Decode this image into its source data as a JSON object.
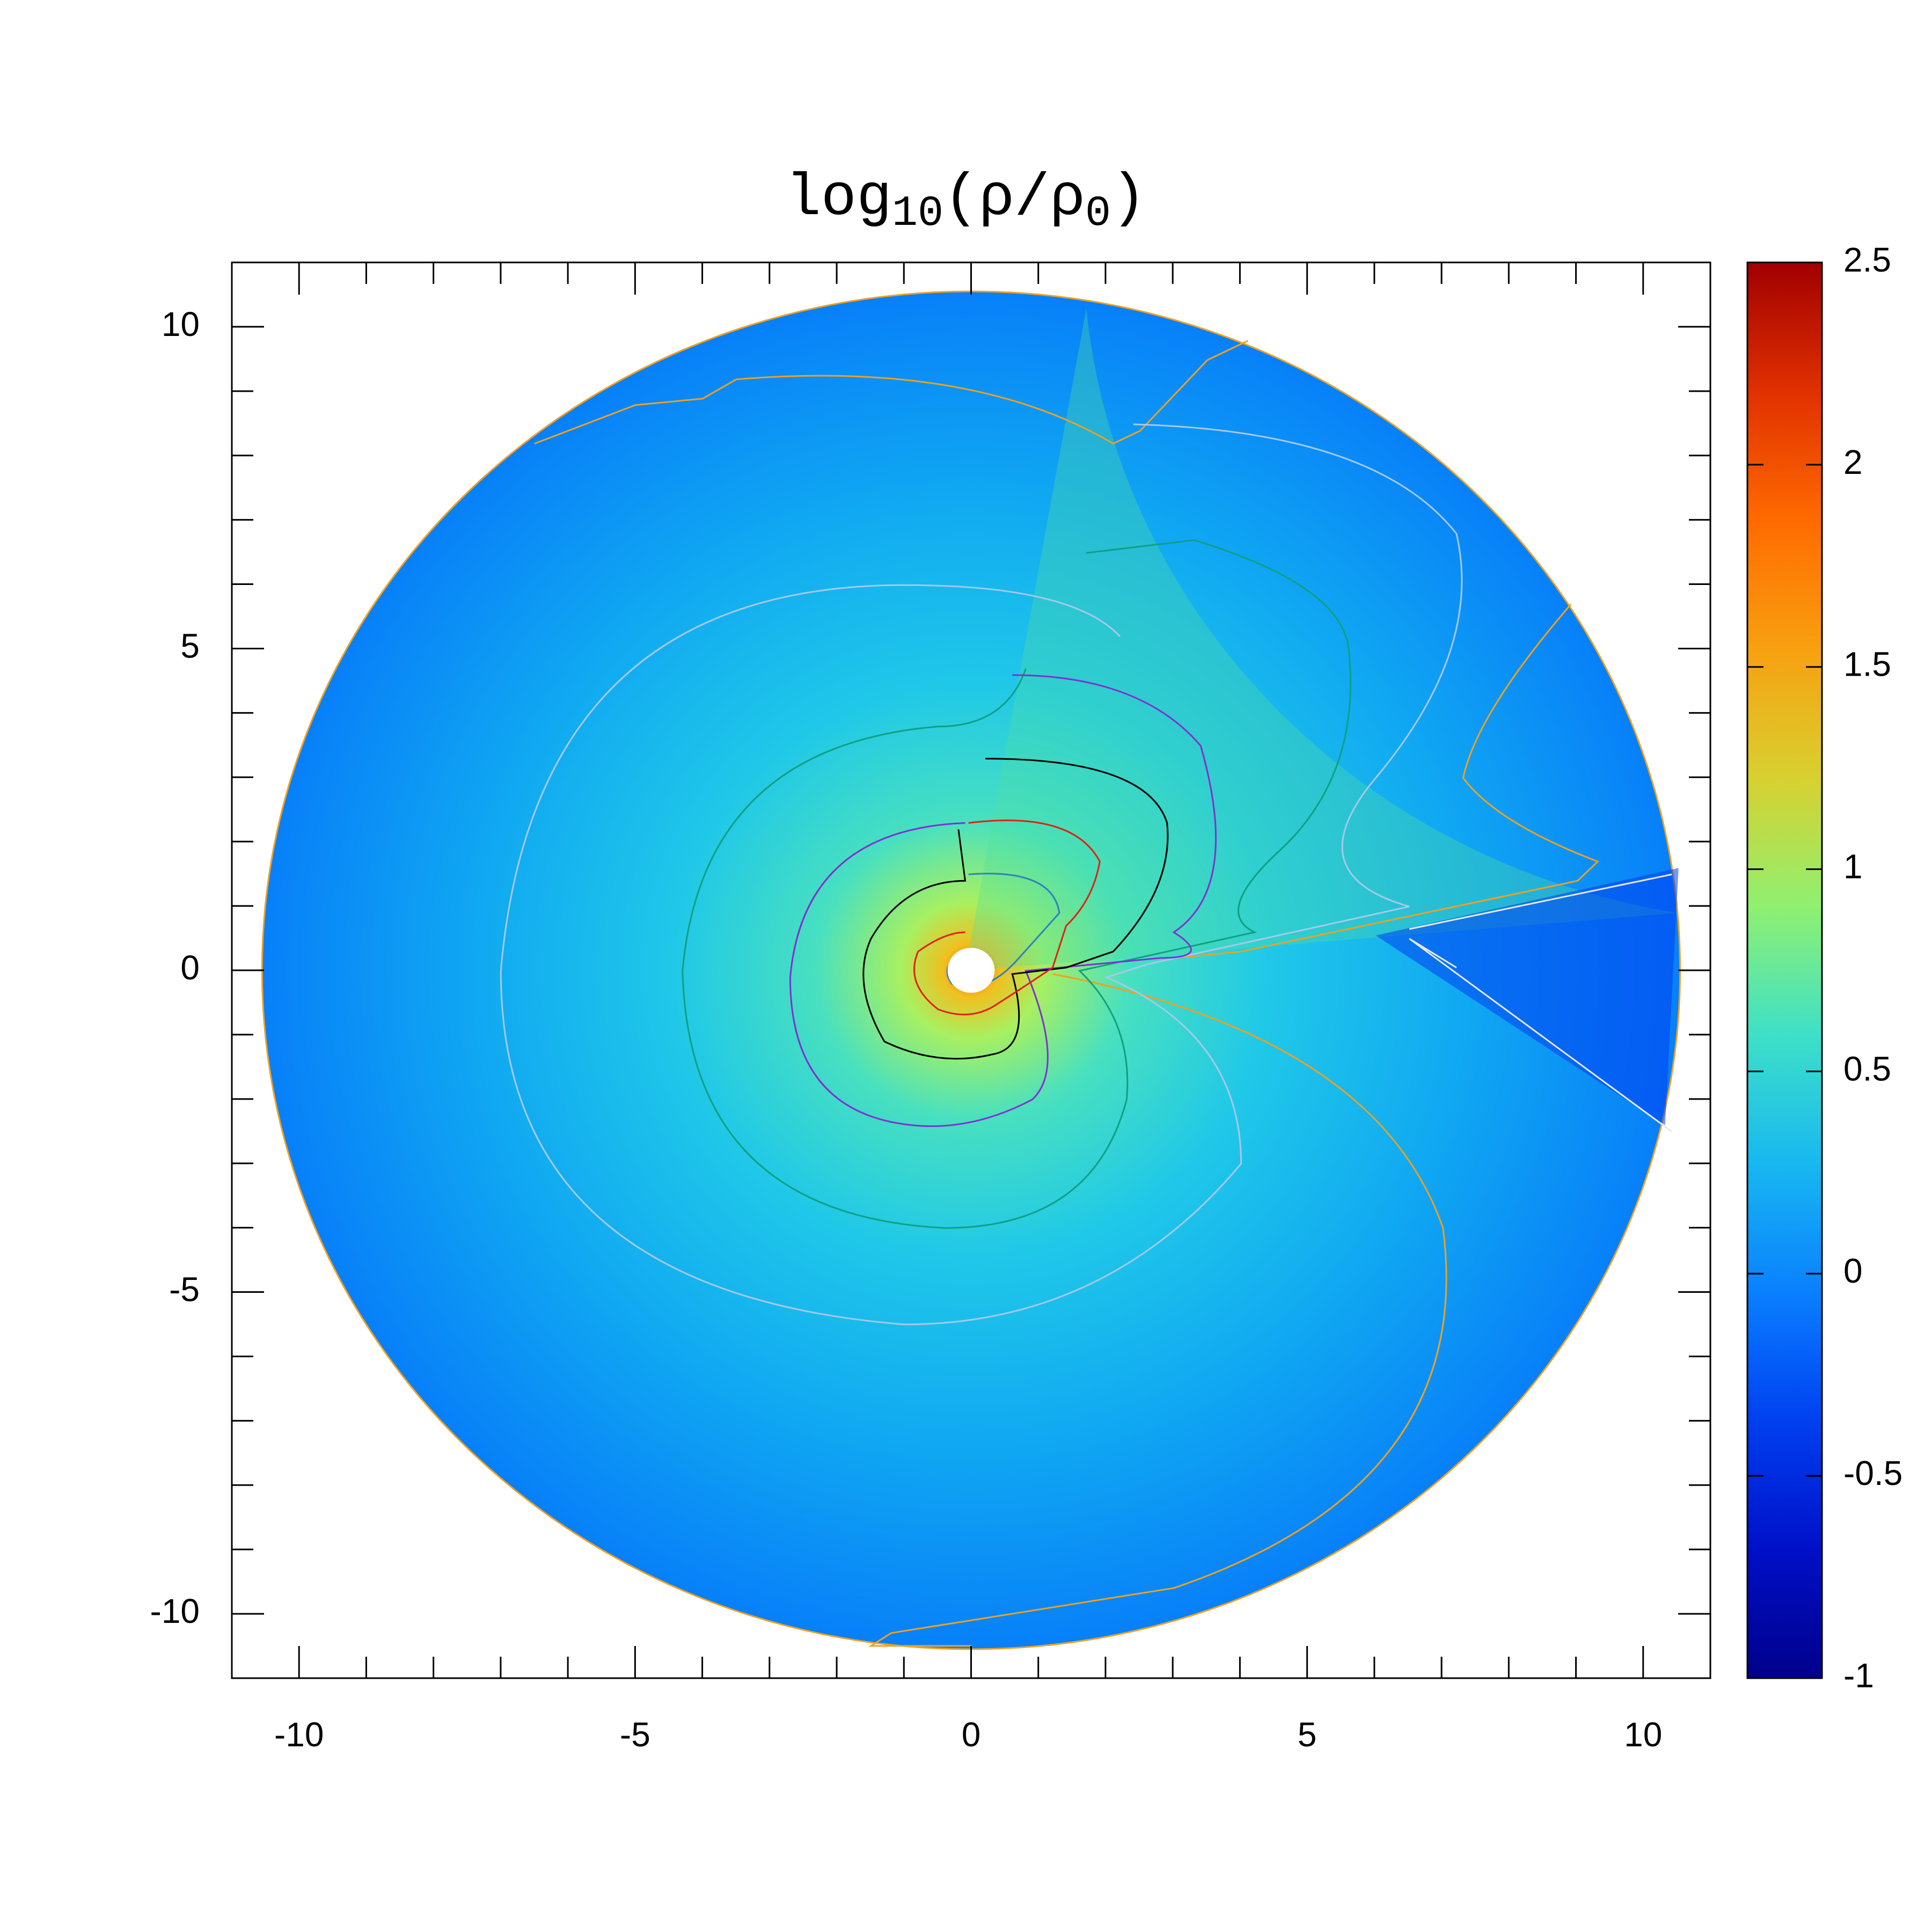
{
  "chart_data": {
    "type": "polar_heatmap",
    "title": [
      "log",
      "10",
      "(ρ/ρ",
      "0",
      ")"
    ],
    "xlim": [
      -11,
      11
    ],
    "xticks": [
      -10,
      -5,
      0,
      5,
      10
    ],
    "xminorticks": [
      -9,
      -8,
      -7,
      -6,
      -4,
      -3,
      -2,
      -1,
      1,
      2,
      3,
      4,
      6,
      7,
      8,
      9
    ],
    "ylim": [
      -11,
      11
    ],
    "yticks": [
      -10,
      -5,
      0,
      5,
      10
    ],
    "yminorticks": [
      -9,
      -8,
      -7,
      -6,
      -4,
      -3,
      -2,
      -1,
      1,
      2,
      3,
      4,
      6,
      7,
      8,
      9
    ],
    "rmin": 0.35,
    "rmax": 10.55,
    "clim": [
      -1,
      2.5
    ],
    "cticks": [
      -1,
      -0.5,
      0,
      0.5,
      1,
      1.5,
      2,
      2.5
    ],
    "colormap": [
      "#00008a",
      "#0010c8",
      "#0040f0",
      "#0a80ff",
      "#18b8f0",
      "#3ee0c8",
      "#90f070",
      "#d8d030",
      "#f8a010",
      "#ff6a00",
      "#e03000",
      "#a00000"
    ]
  }
}
